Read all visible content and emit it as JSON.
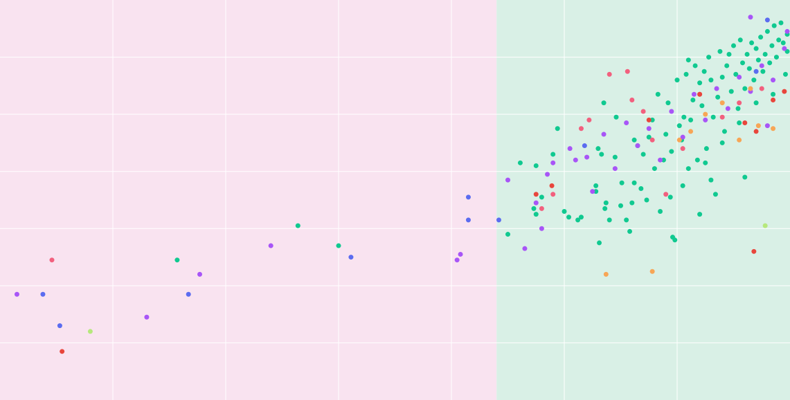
{
  "chart_data": {
    "type": "scatter",
    "title": "",
    "xlabel": "",
    "ylabel": "",
    "grid": true,
    "legend": "none",
    "xlim": [
      0,
      7
    ],
    "ylim": [
      0,
      7
    ],
    "regions": [
      {
        "x_from": 0,
        "x_to": 4.4,
        "color": "#f9e3f0"
      },
      {
        "x_from": 4.4,
        "x_to": 7,
        "color": "#d9f0e6"
      }
    ],
    "colors": {
      "teal": "#10c990",
      "violet": "#a855f7",
      "blue": "#5b6cf0",
      "pink": "#f2607e",
      "red": "#e8463c",
      "orange": "#f7a656",
      "lime": "#b6e87c",
      "grid": "#ffffff"
    },
    "series": [
      {
        "color": "#10c990",
        "points": [
          [
            1.57,
            2.45
          ],
          [
            2.64,
            3.05
          ],
          [
            3.0,
            2.7
          ],
          [
            4.5,
            2.9
          ],
          [
            4.61,
            4.15
          ],
          [
            4.73,
            3.35
          ],
          [
            4.75,
            3.25
          ],
          [
            4.8,
            3.55
          ],
          [
            4.9,
            4.3
          ],
          [
            4.94,
            4.75
          ],
          [
            5.04,
            3.2
          ],
          [
            5.12,
            3.15
          ],
          [
            5.28,
            3.75
          ],
          [
            5.28,
            3.65
          ],
          [
            5.31,
            2.75
          ],
          [
            5.33,
            4.3
          ],
          [
            5.35,
            5.2
          ],
          [
            5.36,
            3.35
          ],
          [
            5.37,
            3.45
          ],
          [
            5.4,
            3.15
          ],
          [
            5.45,
            4.25
          ],
          [
            5.5,
            3.4
          ],
          [
            5.51,
            3.8
          ],
          [
            5.55,
            3.15
          ],
          [
            5.58,
            2.95
          ],
          [
            5.6,
            3.45
          ],
          [
            5.62,
            3.8
          ],
          [
            5.65,
            4.45
          ],
          [
            5.68,
            3.7
          ],
          [
            5.7,
            4.3
          ],
          [
            5.73,
            3.5
          ],
          [
            5.75,
            4.6
          ],
          [
            5.8,
            4.05
          ],
          [
            5.83,
            5.35
          ],
          [
            5.85,
            3.3
          ],
          [
            5.88,
            4.2
          ],
          [
            5.9,
            4.65
          ],
          [
            5.92,
            5.2
          ],
          [
            5.94,
            3.55
          ],
          [
            5.96,
            2.85
          ],
          [
            5.98,
            2.8
          ],
          [
            6.0,
            5.6
          ],
          [
            6.02,
            4.8
          ],
          [
            6.04,
            4.55
          ],
          [
            6.05,
            3.75
          ],
          [
            6.06,
            4.95
          ],
          [
            6.08,
            5.7
          ],
          [
            6.1,
            5.95
          ],
          [
            6.12,
            4.9
          ],
          [
            6.14,
            5.25
          ],
          [
            6.16,
            5.85
          ],
          [
            6.18,
            4.2
          ],
          [
            6.2,
            5.55
          ],
          [
            6.22,
            5.15
          ],
          [
            6.24,
            5.75
          ],
          [
            6.26,
            4.4
          ],
          [
            6.28,
            6.0
          ],
          [
            6.3,
            5.6
          ],
          [
            6.32,
            4.95
          ],
          [
            6.34,
            3.6
          ],
          [
            6.36,
            5.3
          ],
          [
            6.38,
            6.1
          ],
          [
            6.4,
            5.65
          ],
          [
            6.42,
            4.7
          ],
          [
            6.44,
            5.85
          ],
          [
            6.46,
            6.05
          ],
          [
            6.48,
            5.4
          ],
          [
            6.5,
            6.2
          ],
          [
            6.52,
            5.7
          ],
          [
            6.54,
            5.1
          ],
          [
            6.56,
            6.3
          ],
          [
            6.58,
            5.9
          ],
          [
            6.6,
            5.45
          ],
          [
            6.62,
            6.05
          ],
          [
            6.64,
            5.8
          ],
          [
            6.66,
            6.25
          ],
          [
            6.68,
            5.6
          ],
          [
            6.7,
            6.15
          ],
          [
            6.72,
            5.95
          ],
          [
            6.74,
            6.35
          ],
          [
            6.76,
            5.75
          ],
          [
            6.78,
            6.05
          ],
          [
            6.8,
            6.45
          ],
          [
            6.82,
            5.9
          ],
          [
            6.84,
            6.2
          ],
          [
            6.86,
            6.55
          ],
          [
            6.88,
            6.0
          ],
          [
            6.9,
            6.3
          ],
          [
            6.92,
            6.6
          ],
          [
            6.94,
            6.25
          ],
          [
            6.96,
            5.7
          ],
          [
            6.98,
            6.1
          ],
          [
            7.0,
            6.4
          ],
          [
            6.85,
            5.35
          ],
          [
            6.7,
            5.2
          ],
          [
            6.55,
            4.85
          ],
          [
            6.4,
            4.5
          ],
          [
            6.25,
            4.15
          ],
          [
            6.1,
            4.05
          ],
          [
            5.95,
            4.35
          ],
          [
            5.78,
            4.9
          ],
          [
            5.62,
            4.55
          ],
          [
            5.46,
            4.95
          ],
          [
            5.3,
            4.4
          ],
          [
            5.15,
            3.2
          ],
          [
            5.0,
            3.3
          ],
          [
            4.75,
            4.1
          ],
          [
            6.6,
            3.9
          ],
          [
            6.3,
            3.85
          ],
          [
            6.2,
            3.25
          ]
        ]
      },
      {
        "color": "#a855f7",
        "points": [
          [
            0.15,
            1.85
          ],
          [
            1.3,
            1.45
          ],
          [
            1.77,
            2.2
          ],
          [
            2.4,
            2.7
          ],
          [
            4.05,
            2.45
          ],
          [
            4.08,
            2.55
          ],
          [
            4.5,
            3.85
          ],
          [
            4.75,
            3.45
          ],
          [
            4.8,
            3.0
          ],
          [
            4.85,
            3.95
          ],
          [
            4.9,
            4.15
          ],
          [
            5.05,
            4.4
          ],
          [
            5.1,
            4.2
          ],
          [
            5.2,
            4.25
          ],
          [
            5.25,
            3.65
          ],
          [
            5.35,
            4.65
          ],
          [
            5.45,
            4.05
          ],
          [
            5.55,
            4.85
          ],
          [
            5.65,
            4.45
          ],
          [
            5.75,
            4.75
          ],
          [
            5.85,
            4.2
          ],
          [
            5.95,
            5.05
          ],
          [
            6.05,
            4.6
          ],
          [
            6.15,
            5.35
          ],
          [
            6.25,
            4.9
          ],
          [
            6.35,
            5.45
          ],
          [
            6.45,
            5.1
          ],
          [
            6.55,
            5.65
          ],
          [
            6.65,
            5.4
          ],
          [
            6.75,
            5.85
          ],
          [
            6.85,
            5.6
          ],
          [
            6.95,
            6.15
          ],
          [
            6.8,
            4.8
          ],
          [
            6.65,
            6.7
          ],
          [
            7.0,
            6.45
          ],
          [
            4.65,
            2.65
          ]
        ]
      },
      {
        "color": "#5b6cf0",
        "points": [
          [
            0.38,
            1.85
          ],
          [
            0.53,
            1.3
          ],
          [
            1.67,
            1.85
          ],
          [
            3.11,
            2.5
          ],
          [
            4.15,
            3.55
          ],
          [
            4.15,
            3.15
          ],
          [
            4.42,
            3.15
          ],
          [
            5.18,
            4.45
          ],
          [
            6.8,
            6.65
          ],
          [
            6.7,
            5.75
          ]
        ]
      },
      {
        "color": "#f2607e",
        "points": [
          [
            0.46,
            2.45
          ],
          [
            4.8,
            3.35
          ],
          [
            4.9,
            3.6
          ],
          [
            5.15,
            4.75
          ],
          [
            5.22,
            4.9
          ],
          [
            5.4,
            5.7
          ],
          [
            5.56,
            5.75
          ],
          [
            5.6,
            5.25
          ],
          [
            5.7,
            5.05
          ],
          [
            5.78,
            4.55
          ],
          [
            5.9,
            3.6
          ],
          [
            6.05,
            4.4
          ],
          [
            6.2,
            5.35
          ],
          [
            6.4,
            4.95
          ],
          [
            6.55,
            5.2
          ],
          [
            6.75,
            5.45
          ]
        ]
      },
      {
        "color": "#e8463c",
        "points": [
          [
            0.55,
            0.85
          ],
          [
            4.75,
            3.6
          ],
          [
            4.89,
            3.75
          ],
          [
            5.75,
            4.9
          ],
          [
            6.2,
            5.35
          ],
          [
            6.6,
            4.85
          ],
          [
            6.7,
            4.7
          ],
          [
            6.68,
            2.6
          ],
          [
            6.95,
            5.4
          ],
          [
            6.85,
            5.25
          ]
        ]
      },
      {
        "color": "#f7a656",
        "points": [
          [
            5.37,
            2.2
          ],
          [
            5.78,
            2.25
          ],
          [
            6.02,
            4.55
          ],
          [
            6.12,
            4.7
          ],
          [
            6.25,
            5.0
          ],
          [
            6.4,
            5.2
          ],
          [
            6.55,
            4.55
          ],
          [
            6.65,
            5.45
          ],
          [
            6.72,
            4.8
          ],
          [
            6.85,
            4.75
          ]
        ]
      },
      {
        "color": "#b6e87c",
        "points": [
          [
            0.8,
            1.2
          ],
          [
            6.78,
            3.05
          ]
        ]
      }
    ]
  }
}
